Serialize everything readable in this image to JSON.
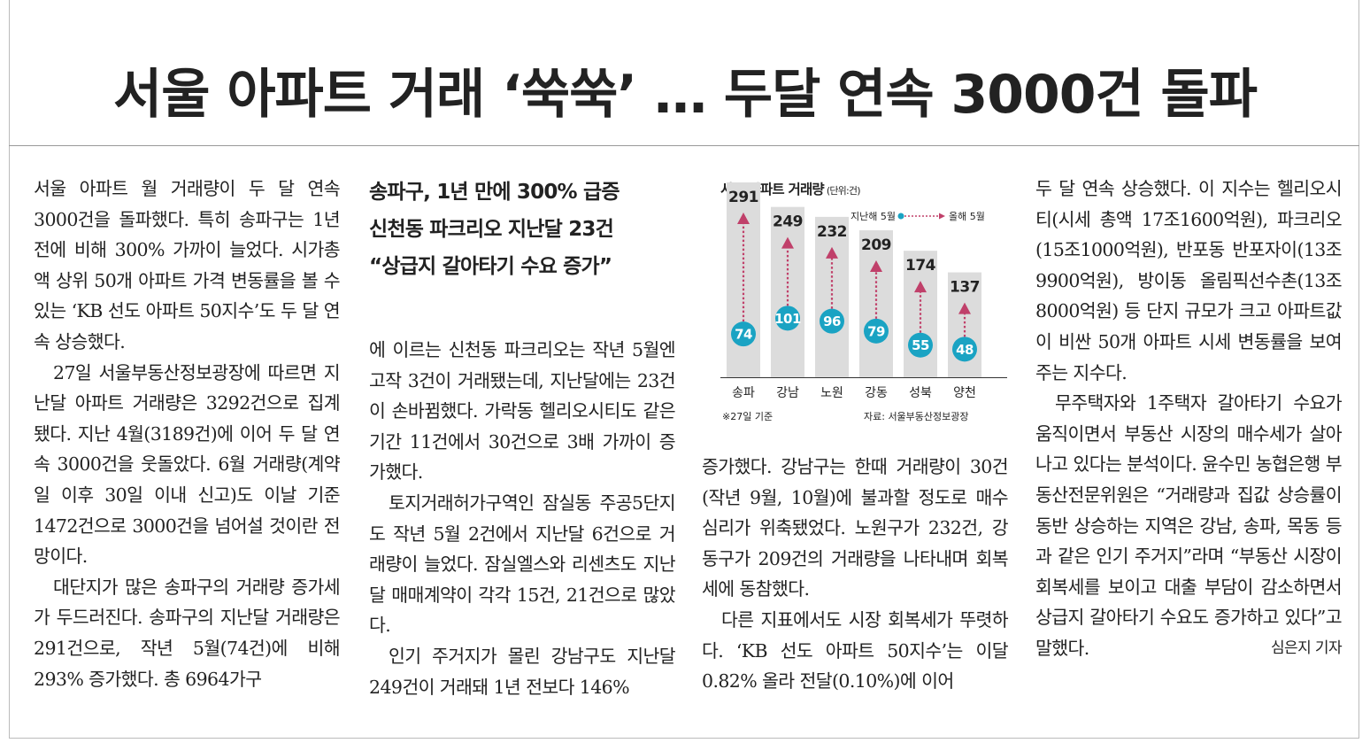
{
  "headline": "서울 아파트 거래 ‘쑥쑥’ … 두달 연속 3000건 돌파",
  "subheadlines": [
    "송파구, 1년 만에 300% 급증",
    "신천동 파크리오 지난달 23건",
    "“상급지 갈아타기 수요 증가”"
  ],
  "columns": {
    "col1": [
      "서울 아파트 월 거래량이 두 달 연속 3000건을 돌파했다. 특히 송파구는 1년 전에 비해 300% 가까이 늘었다. 시가총액 상위 50개 아파트 가격 변동률을 볼 수 있는 ‘KB 선도 아파트 50지수’도 두 달 연속 상승했다.",
      "27일 서울부동산정보광장에 따르면 지난달 아파트 거래량은 3292건으로 집계됐다. 지난 4월(3189건)에 이어 두 달 연속 3000건을 웃돌았다. 6월 거래량(계약일 이후 30일 이내 신고)도 이날 기준 1472건으로 3000건을 넘어설 것이란 전망이다.",
      "대단지가 많은 송파구의 거래량 증가세가 두드러진다. 송파구의 지난달 거래량은 291건으로, 작년 5월(74건)에 비해 293% 증가했다. 총 6964가구"
    ],
    "col2": [
      "에 이르는 신천동 파크리오는 작년 5월엔 고작 3건이 거래됐는데, 지난달에는 23건이 손바뀜했다. 가락동 헬리오시티도 같은 기간 11건에서 30건으로 3배 가까이 증가했다.",
      "토지거래허가구역인 잠실동 주공5단지도 작년 5월 2건에서 지난달 6건으로 거래량이 늘었다. 잠실엘스와 리센츠도 지난달 매매계약이 각각 15건, 21건으로 많았다.",
      "인기 주거지가 몰린 강남구도 지난달 249건이 거래돼 1년 전보다 146%"
    ],
    "col3": [
      "증가했다. 강남구는 한때 거래량이 30건(작년 9월, 10월)에 불과할 정도로 매수 심리가 위축됐었다. 노원구가 232건, 강동구가 209건의 거래량을 나타내며 회복세에 동참했다.",
      "다른 지표에서도 시장 회복세가 뚜렷하다. ‘KB 선도 아파트 50지수’는 이달 0.82% 올라 전달(0.10%)에 이어"
    ],
    "col4": [
      "두 달 연속 상승했다. 이 지수는 헬리오시티(시세 총액 17조1600억원), 파크리오(15조1000억원), 반포동 반포자이(13조9900억원), 방이동 올림픽선수촌(13조8000억원) 등 단지 규모가 크고 아파트값이 비싼 50개 아파트 시세 변동률을 보여주는 지수다.",
      "무주택자와 1주택자 갈아타기 수요가 움직이면서 부동산 시장의 매수세가 살아나고 있다는 분석이다. 윤수민 농협은행 부동산전문위원은 “거래량과 집값 상승률이 동반 상승하는 지역은 강남, 송파, 목동 등과 같은 인기 주거지”라며 “부동산 시장이 회복세를 보이고 대출 부담이 감소하면서 상급지 갈아타기 수요도 증가하고 있다”고 말했다."
    ],
    "byline": "심은지 기자"
  },
  "chart_data": {
    "type": "bar",
    "title": "서울 아파트 거래량",
    "unit": "(단위:건)",
    "categories": [
      "송파",
      "강남",
      "노원",
      "강동",
      "성북",
      "양천"
    ],
    "series": [
      {
        "name": "지난해 5월",
        "values": [
          74,
          101,
          96,
          79,
          55,
          48
        ]
      },
      {
        "name": "올해 5월",
        "values": [
          291,
          249,
          232,
          209,
          174,
          137
        ]
      }
    ],
    "legend": {
      "from": "지난해 5월",
      "to": "올해 5월"
    },
    "note": "※27일 기준",
    "source": "자료: 서울부동산정보광장",
    "ylim": [
      0,
      300
    ],
    "colors": {
      "bar": "#dcdcdc",
      "dot": "#1aa3c3",
      "arrow": "#c0406a"
    }
  }
}
